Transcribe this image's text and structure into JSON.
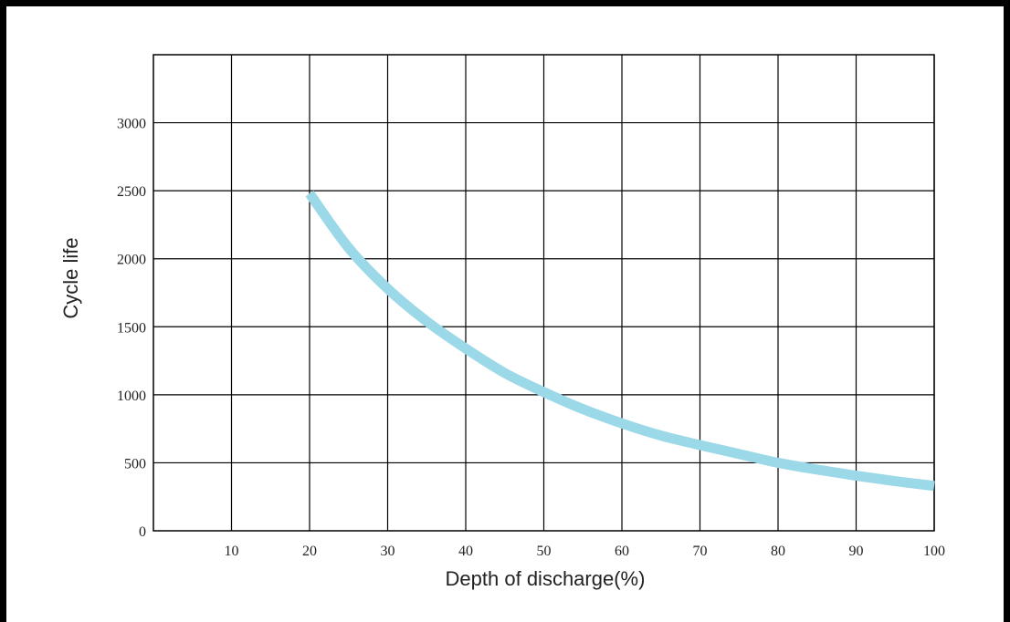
{
  "chart_data": {
    "type": "line",
    "title": "",
    "xlabel": "Depth of discharge(%)",
    "ylabel": "Cycle life",
    "xlim": [
      0,
      100
    ],
    "ylim": [
      0,
      3500
    ],
    "x_ticks": [
      10,
      20,
      30,
      40,
      50,
      60,
      70,
      80,
      90,
      100
    ],
    "y_ticks": [
      0,
      500,
      1000,
      1500,
      2000,
      2500,
      3000
    ],
    "grid": true,
    "legend": "none",
    "series": [
      {
        "x": [
          20,
          25,
          30,
          35,
          40,
          45,
          50,
          55,
          60,
          65,
          70,
          75,
          80,
          85,
          90,
          95,
          100
        ],
        "y": [
          2480,
          2080,
          1780,
          1540,
          1340,
          1160,
          1020,
          895,
          790,
          700,
          630,
          565,
          500,
          450,
          405,
          365,
          330
        ],
        "color": "#9bd8e8"
      }
    ]
  }
}
